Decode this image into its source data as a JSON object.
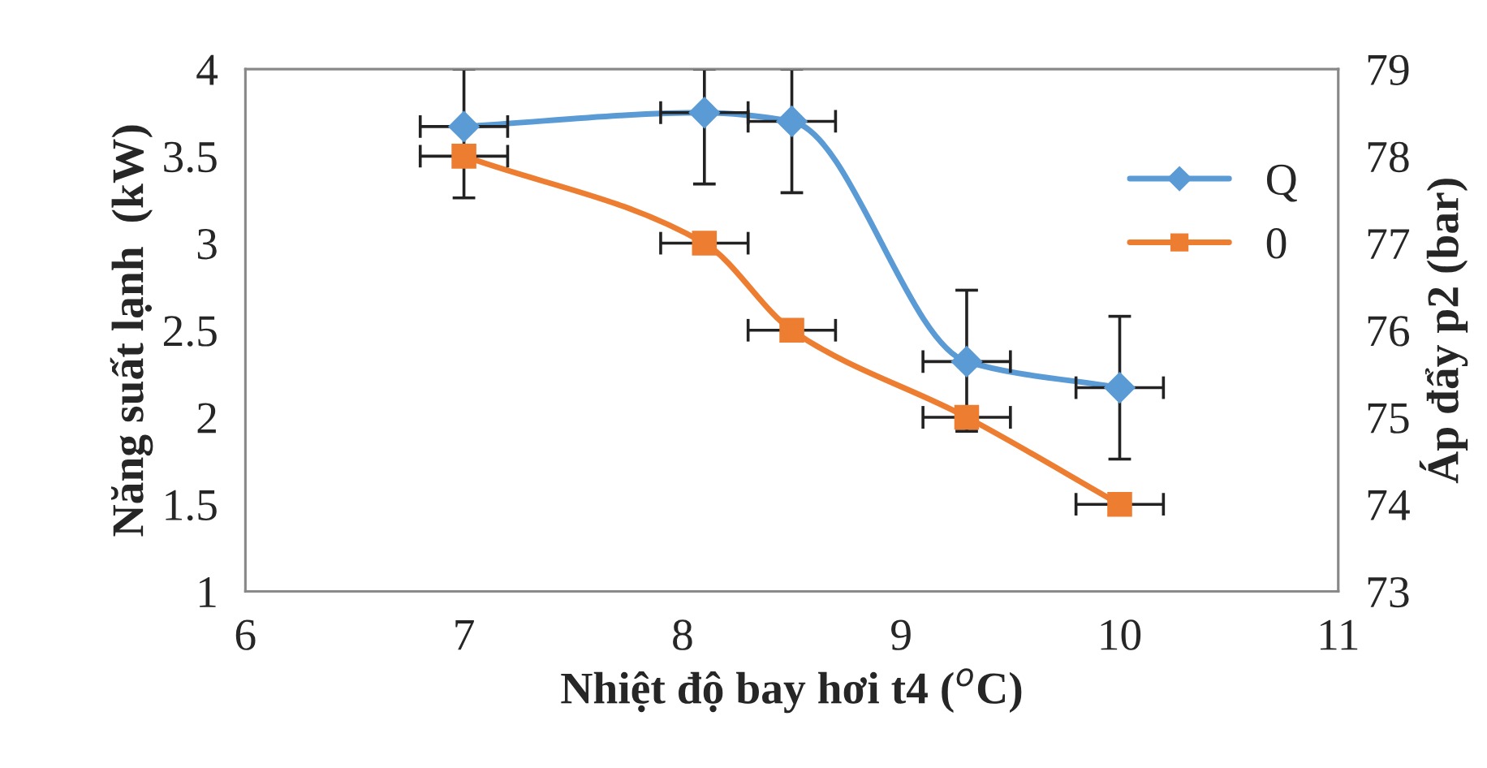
{
  "chart_data": {
    "type": "line",
    "xlabel": "Nhiệt độ bay hơi t4 ($^{o}$C)",
    "ylabel": "Năng suất lạnh  (kW)",
    "y2label": "Áp đẩy p2 (bar)",
    "x": [
      7,
      8.1,
      8.5,
      9.3,
      10
    ],
    "series": [
      {
        "name": "Q",
        "color": "#5b9bd5",
        "marker": "diamond",
        "values": [
          3.67,
          3.75,
          3.7,
          2.32,
          2.17
        ],
        "errors": [
          [
            3.26,
            4
          ],
          [
            3.34,
            4
          ],
          [
            3.29,
            4
          ],
          [
            1.92,
            2.73
          ],
          [
            1.76,
            2.58
          ]
        ],
        "xerrors": [
          0.2,
          0.2,
          0.2,
          0.2,
          0.2
        ]
      },
      {
        "name": "0",
        "color": "#ed7d31",
        "marker": "square",
        "axis": "y2",
        "values": [
          78,
          77,
          76,
          75,
          74
        ],
        "xerrors": [
          0.2,
          0.2,
          0.2,
          0.2,
          0.2
        ]
      }
    ],
    "xlim": [
      6,
      11
    ],
    "xticks": [
      6,
      7,
      8,
      9,
      10,
      11
    ],
    "ylim": [
      1,
      4
    ],
    "yticks": [
      1,
      1.5,
      2,
      2.5,
      3,
      3.5,
      4
    ],
    "y2lim": [
      73,
      79
    ],
    "y2ticks": [
      73,
      74,
      75,
      76,
      77,
      78,
      79
    ],
    "grid": false,
    "legend": "right"
  }
}
